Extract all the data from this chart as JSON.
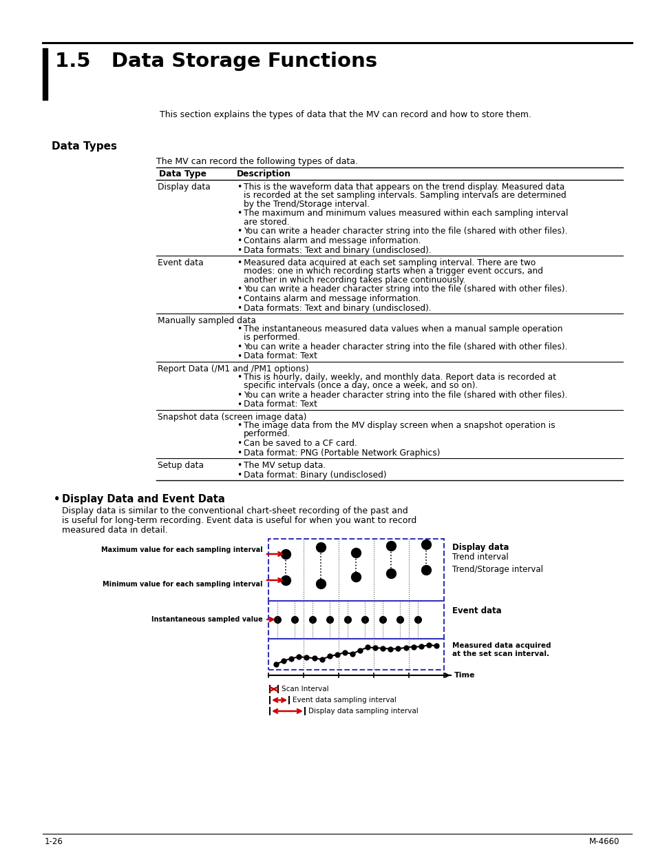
{
  "title": "1.5   Data Storage Functions",
  "section_intro": "This section explains the types of data that the MV can record and how to store them.",
  "subsection": "Data Types",
  "table_intro": "The MV can record the following types of data.",
  "col1_header": "Data Type",
  "col2_header": "Description",
  "table_rows": [
    {
      "type": "Display data",
      "bullets": [
        "This is the waveform data that appears on the trend display. Measured data\nis recorded at the set sampling intervals. Sampling intervals are determined\nby the Trend/Storage interval.",
        "The maximum and minimum values measured within each sampling interval\nare stored.",
        "You can write a header character string into the file (shared with other files).",
        "Contains alarm and message information.",
        "Data formats: Text and binary (undisclosed)."
      ]
    },
    {
      "type": "Event data",
      "bullets": [
        "Measured data acquired at each set sampling interval. There are two\nmodes: one in which recording starts when a trigger event occurs, and\nanother in which recording takes place continuously.",
        "You can write a header character string into the file (shared with other files).",
        "Contains alarm and message information.",
        "Data formats: Text and binary (undisclosed)."
      ]
    },
    {
      "type": "Manually sampled data",
      "span_type": true,
      "bullets": [
        "The instantaneous measured data values when a manual sample operation\nis performed.",
        "You can write a header character string into the file (shared with other files).",
        "Data format: Text"
      ]
    },
    {
      "type": "Report Data (/M1 and /PM1 options)",
      "span_type": true,
      "bullets": [
        "This is hourly, daily, weekly, and monthly data. Report data is recorded at\nspecific intervals (once a day, once a week, and so on).",
        "You can write a header character string into the file (shared with other files).",
        "Data format: Text"
      ]
    },
    {
      "type": "Snapshot data (screen image data)",
      "span_type": true,
      "bullets": [
        "The image data from the MV display screen when a snapshot operation is\nperformed.",
        "Can be saved to a CF card.",
        "Data format: PNG (Portable Network Graphics)"
      ]
    },
    {
      "type": "Setup data",
      "bullets": [
        "The MV setup data.",
        "Data format: Binary (undisclosed)"
      ]
    }
  ],
  "bullet_section_title": "Display Data and Event Data",
  "bullet_section_text1": "Display data is similar to the conventional chart-sheet recording of the past and",
  "bullet_section_text2": "is useful for long-term recording. Event data is useful for when you want to record",
  "bullet_section_text3": "measured data in detail.",
  "diagram_labels": {
    "display_data": "Display data",
    "trend_interval": "Trend interval",
    "trend_storage_interval": "Trend/Storage interval",
    "event_data": "Event data",
    "measured_data": "Measured data acquired\nat the set scan interval.",
    "time": "Time",
    "scan_interval": "Scan Interval",
    "event_sampling": "Event data sampling interval",
    "display_sampling": "Display data sampling interval"
  },
  "diagram_left_labels": {
    "max_label1": "Maximum value for each sampling interval",
    "max_label2": "Minimum value for each sampling interval",
    "instantaneous": "Instantaneous sampled value"
  },
  "footer_left": "1-26",
  "footer_right": "M-4660",
  "page_bg": "#ffffff",
  "diagram_dashed_color": "#3333bb",
  "diagram_red_color": "#cc0000"
}
